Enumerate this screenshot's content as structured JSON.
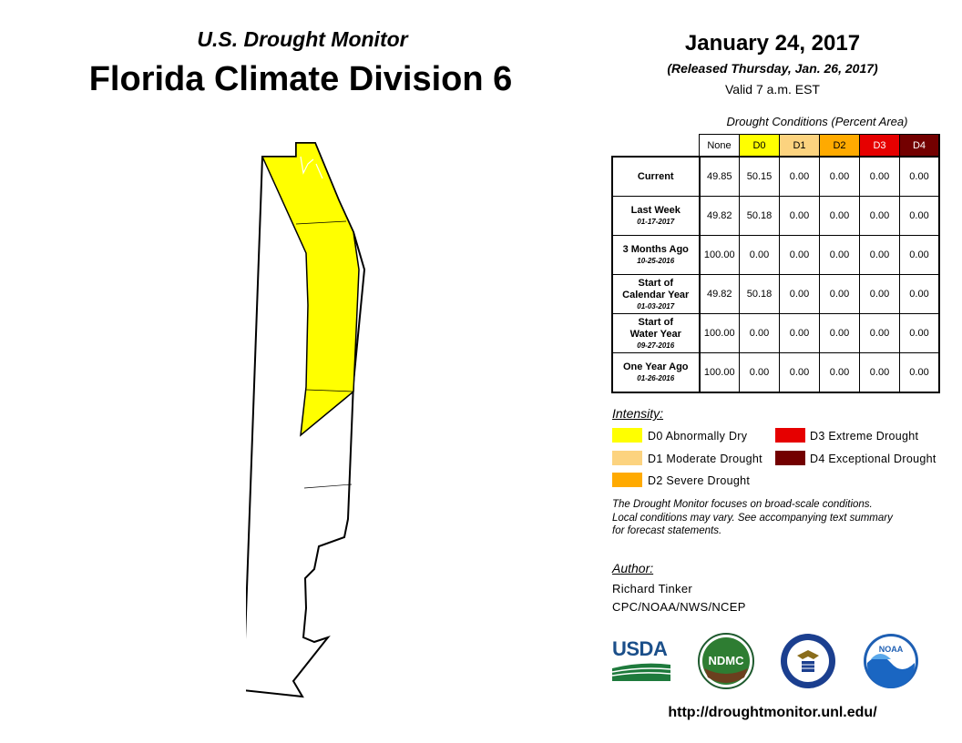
{
  "header": {
    "subtitle": "U.S. Drought Monitor",
    "title": "Florida Climate Division 6",
    "date": "January 24, 2017",
    "released": "(Released Thursday, Jan. 26, 2017)",
    "valid": "Valid 7 a.m. EST"
  },
  "table": {
    "caption": "Drought Conditions (Percent Area)",
    "columns": [
      "None",
      "D0",
      "D1",
      "D2",
      "D3",
      "D4"
    ],
    "column_colors": [
      "#ffffff",
      "#ffff00",
      "#fcd37f",
      "#ffaa00",
      "#e60000",
      "#730000"
    ],
    "rows": [
      {
        "label": "Current",
        "date": "",
        "values": [
          "49.85",
          "50.15",
          "0.00",
          "0.00",
          "0.00",
          "0.00"
        ]
      },
      {
        "label": "Last Week",
        "date": "01-17-2017",
        "values": [
          "49.82",
          "50.18",
          "0.00",
          "0.00",
          "0.00",
          "0.00"
        ]
      },
      {
        "label": "3 Months Ago",
        "date": "10-25-2016",
        "values": [
          "100.00",
          "0.00",
          "0.00",
          "0.00",
          "0.00",
          "0.00"
        ]
      },
      {
        "label": "Start of Calendar Year",
        "date": "01-03-2017",
        "values": [
          "49.82",
          "50.18",
          "0.00",
          "0.00",
          "0.00",
          "0.00"
        ]
      },
      {
        "label": "Start of Water Year",
        "date": "09-27-2016",
        "values": [
          "100.00",
          "0.00",
          "0.00",
          "0.00",
          "0.00",
          "0.00"
        ]
      },
      {
        "label": "One Year Ago",
        "date": "01-26-2016",
        "values": [
          "100.00",
          "0.00",
          "0.00",
          "0.00",
          "0.00",
          "0.00"
        ]
      }
    ]
  },
  "legend": {
    "heading": "Intensity:",
    "items": [
      {
        "label": "D0 Abnormally Dry",
        "color": "#ffff00"
      },
      {
        "label": "D1 Moderate Drought",
        "color": "#fcd37f"
      },
      {
        "label": "D2 Severe Drought",
        "color": "#ffaa00"
      },
      {
        "label": "D3 Extreme Drought",
        "color": "#e60000"
      },
      {
        "label": "D4 Exceptional Drought",
        "color": "#730000"
      }
    ]
  },
  "note": [
    "The Drought Monitor focuses on broad-scale conditions.",
    "Local conditions may vary. See accompanying text summary",
    "for forecast statements."
  ],
  "author": {
    "heading": "Author:",
    "name": "Richard Tinker",
    "org": "CPC/NOAA/NWS/NCEP"
  },
  "logos": {
    "usda": "USDA",
    "ndmc": "NDMC",
    "noaa": "NOAA"
  },
  "url": "http://droughtmonitor.unl.edu/",
  "map_colors": {
    "d0": "#ffff00",
    "none": "#ffffff",
    "outline": "#000000"
  }
}
